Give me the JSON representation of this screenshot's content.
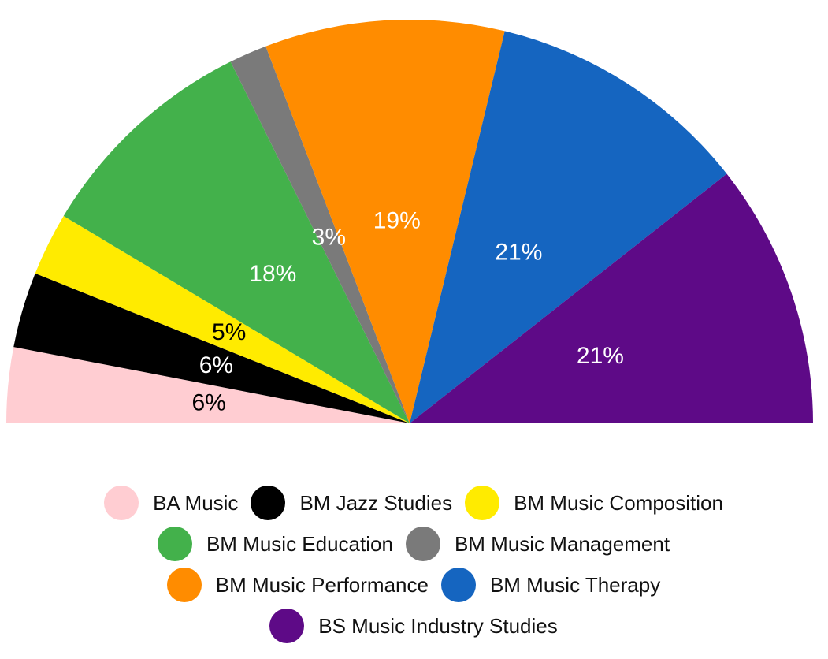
{
  "chart_data": {
    "type": "pie",
    "half": true,
    "categories": [
      "BA Music",
      "BM Jazz Studies",
      "BM Music Composition",
      "BM Music Education",
      "BM Music Management",
      "BM Music Performance",
      "BM Music Therapy",
      "BS Music Industry Studies"
    ],
    "values": [
      6,
      6,
      5,
      18,
      3,
      19,
      21,
      21
    ],
    "value_labels": [
      "6%",
      "6%",
      "5%",
      "18%",
      "3%",
      "19%",
      "21%",
      "21%"
    ],
    "colors": [
      "#ffcdd2",
      "#000000",
      "#ffeb00",
      "#43b14b",
      "#7a7a7a",
      "#ff8c00",
      "#1565c0",
      "#5e0a87"
    ],
    "label_colors": [
      "#000000",
      "#ffffff",
      "#000000",
      "#ffffff",
      "#ffffff",
      "#ffffff",
      "#ffffff",
      "#ffffff"
    ],
    "legend": "bottom"
  }
}
